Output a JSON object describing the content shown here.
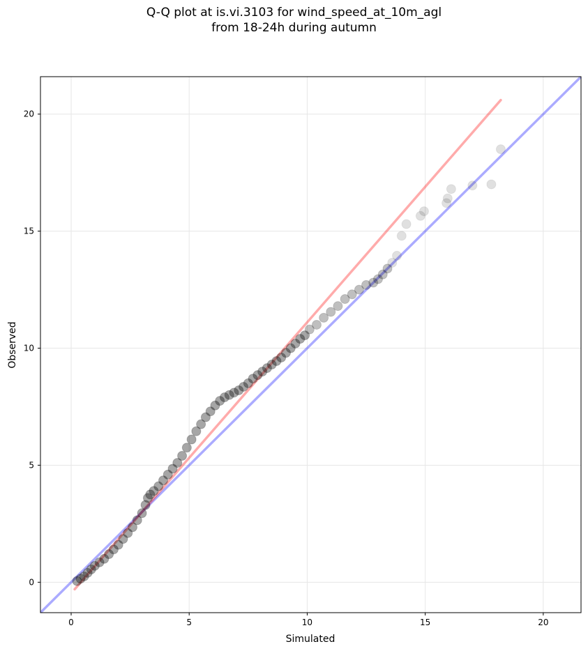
{
  "title_line1": "Q-Q plot at is.vi.3103 for wind_speed_at_10m_agl",
  "title_line2": "from 18-24h during autumn",
  "chart_data": {
    "type": "scatter",
    "xlabel": "Simulated",
    "ylabel": "Observed",
    "xlim": [
      -1.3,
      21.6
    ],
    "ylim": [
      -1.3,
      21.6
    ],
    "xticks": [
      0,
      5,
      10,
      15,
      20
    ],
    "yticks": [
      0,
      5,
      10,
      15,
      20
    ],
    "grid": true,
    "lines": [
      {
        "role": "identity (1:1)",
        "color": "#0000ff",
        "opacity": 0.33,
        "x": [
          -1.3,
          21.6
        ],
        "y": [
          -1.3,
          21.6
        ]
      },
      {
        "role": "regression fit",
        "color": "#ff0000",
        "opacity": 0.33,
        "x": [
          0.15,
          18.2
        ],
        "y": [
          -0.3,
          20.6
        ]
      }
    ],
    "points": {
      "color": "#000000",
      "note": "quantile pairs (simulated, observed)",
      "x": [
        0.25,
        0.4,
        0.55,
        0.7,
        0.85,
        1.0,
        1.2,
        1.4,
        1.6,
        1.8,
        2.0,
        2.2,
        2.4,
        2.6,
        2.8,
        3.0,
        3.15,
        3.25,
        3.35,
        3.5,
        3.7,
        3.9,
        4.1,
        4.3,
        4.5,
        4.7,
        4.9,
        5.1,
        5.3,
        5.5,
        5.7,
        5.9,
        6.1,
        6.3,
        6.5,
        6.7,
        6.9,
        7.1,
        7.3,
        7.5,
        7.7,
        7.9,
        8.1,
        8.3,
        8.5,
        8.7,
        8.9,
        9.1,
        9.3,
        9.5,
        9.7,
        9.9,
        10.1,
        10.4,
        10.7,
        11.0,
        11.3,
        11.6,
        11.9,
        12.2,
        12.5,
        12.8,
        13.0,
        13.2,
        13.4,
        13.6,
        13.8,
        14.0,
        14.2,
        14.8,
        14.95,
        15.9,
        15.95,
        16.1,
        17.0,
        17.8,
        18.2
      ],
      "y": [
        0.05,
        0.15,
        0.25,
        0.4,
        0.55,
        0.7,
        0.85,
        1.0,
        1.2,
        1.4,
        1.6,
        1.85,
        2.1,
        2.35,
        2.65,
        2.95,
        3.3,
        3.6,
        3.75,
        3.9,
        4.1,
        4.35,
        4.6,
        4.85,
        5.1,
        5.4,
        5.75,
        6.1,
        6.45,
        6.75,
        7.05,
        7.3,
        7.55,
        7.75,
        7.9,
        8.0,
        8.1,
        8.2,
        8.35,
        8.5,
        8.7,
        8.85,
        9.0,
        9.15,
        9.3,
        9.45,
        9.6,
        9.8,
        10.0,
        10.2,
        10.4,
        10.55,
        10.8,
        11.0,
        11.3,
        11.55,
        11.8,
        12.1,
        12.3,
        12.5,
        12.7,
        12.8,
        12.95,
        13.15,
        13.4,
        13.65,
        13.95,
        14.8,
        15.3,
        15.65,
        15.85,
        16.2,
        16.4,
        16.8,
        16.95,
        17.0,
        18.5
      ]
    }
  }
}
